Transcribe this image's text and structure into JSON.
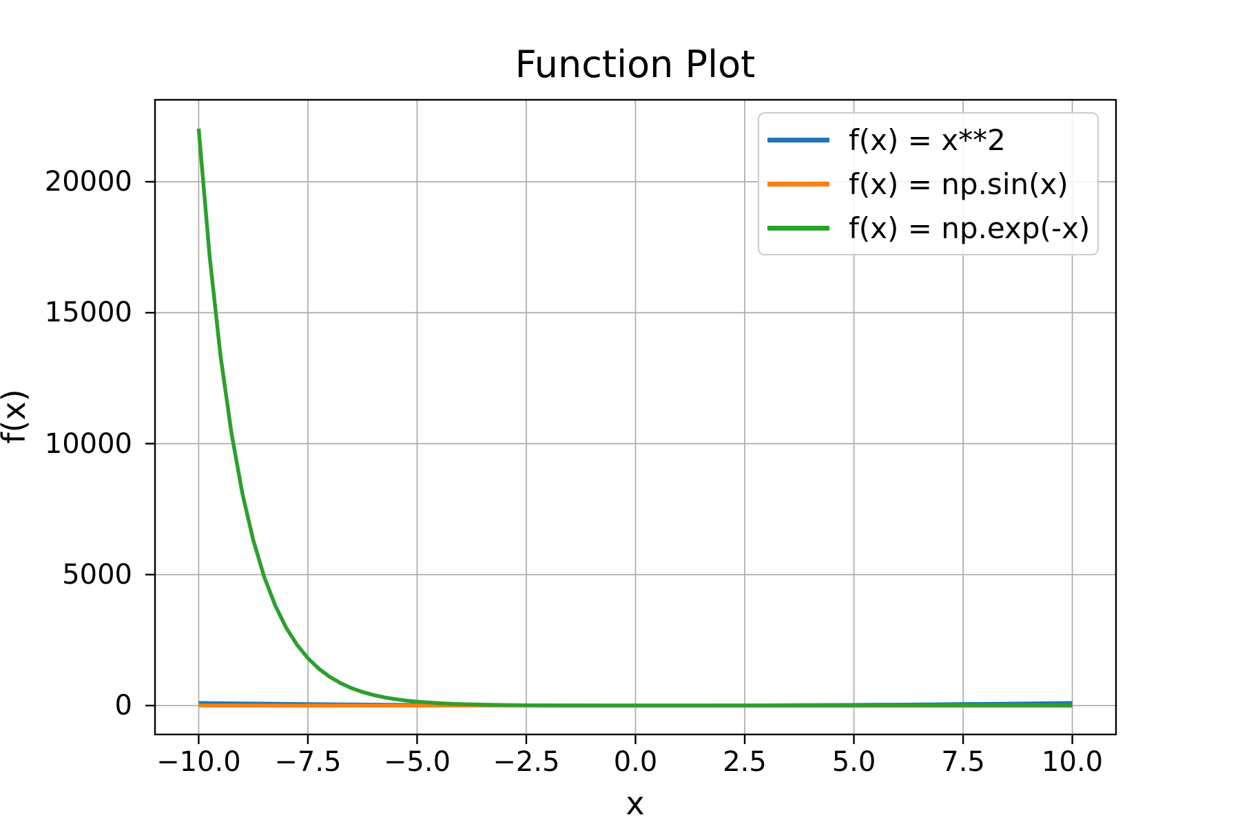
{
  "figure": {
    "background": "#ffffff"
  },
  "chart_data": {
    "type": "line",
    "title": "Function Plot",
    "xlabel": "x",
    "ylabel": "f(x)",
    "xlim": [
      -11,
      11
    ],
    "ylim": [
      -1103,
      23129
    ],
    "grid": true,
    "grid_color": "#b0b0b0",
    "axis_color": "#000000",
    "legend_position": "upper right",
    "legend_border_color": "#cccccc",
    "xticks": {
      "values": [
        -10,
        -7.5,
        -5,
        -2.5,
        0,
        2.5,
        5,
        7.5,
        10
      ],
      "labels": [
        "−10.0",
        "−7.5",
        "−5.0",
        "−2.5",
        "0.0",
        "2.5",
        "5.0",
        "7.5",
        "10.0"
      ]
    },
    "yticks": {
      "values": [
        0,
        5000,
        10000,
        15000,
        20000
      ],
      "labels": [
        "0",
        "5000",
        "10000",
        "15000",
        "20000"
      ]
    },
    "series": [
      {
        "name": "f(x) = x**2",
        "color": "#1f77b4",
        "points": [
          [
            -10,
            100
          ],
          [
            -9,
            81
          ],
          [
            -8,
            64
          ],
          [
            -7,
            49
          ],
          [
            -6,
            36
          ],
          [
            -5,
            25
          ],
          [
            -4,
            16
          ],
          [
            -3,
            9
          ],
          [
            -2,
            4
          ],
          [
            -1,
            1
          ],
          [
            0,
            0
          ],
          [
            1,
            1
          ],
          [
            2,
            4
          ],
          [
            3,
            9
          ],
          [
            4,
            16
          ],
          [
            5,
            25
          ],
          [
            6,
            36
          ],
          [
            7,
            49
          ],
          [
            8,
            64
          ],
          [
            9,
            81
          ],
          [
            10,
            100
          ]
        ]
      },
      {
        "name": "f(x) = np.sin(x)",
        "color": "#ff7f0e",
        "points": [
          [
            -10,
            0.54
          ],
          [
            -9,
            -0.41
          ],
          [
            -8,
            -0.99
          ],
          [
            -7,
            -0.66
          ],
          [
            -6,
            0.28
          ],
          [
            -5,
            0.96
          ],
          [
            -4,
            0.76
          ],
          [
            -3,
            -0.14
          ],
          [
            -2,
            -0.91
          ],
          [
            -1,
            -0.84
          ],
          [
            0,
            0
          ],
          [
            1,
            0.84
          ],
          [
            2,
            0.91
          ],
          [
            3,
            0.14
          ],
          [
            4,
            -0.76
          ],
          [
            5,
            -0.96
          ],
          [
            6,
            -0.28
          ],
          [
            7,
            0.66
          ],
          [
            8,
            0.99
          ],
          [
            9,
            0.41
          ],
          [
            10,
            -0.54
          ]
        ]
      },
      {
        "name": "f(x) = np.exp(-x)",
        "color": "#2ca02c",
        "points": [
          [
            -10,
            22026.47
          ],
          [
            -9.75,
            17154.23
          ],
          [
            -9.5,
            13359.73
          ],
          [
            -9.25,
            10404.57
          ],
          [
            -9,
            8103.08
          ],
          [
            -8.75,
            6310.69
          ],
          [
            -8.5,
            4914.77
          ],
          [
            -8.25,
            3827.63
          ],
          [
            -8,
            2980.96
          ],
          [
            -7.75,
            2321.57
          ],
          [
            -7.5,
            1808.04
          ],
          [
            -7.25,
            1408.1
          ],
          [
            -7,
            1096.63
          ],
          [
            -6.75,
            854.06
          ],
          [
            -6.5,
            665.14
          ],
          [
            -6.25,
            518.01
          ],
          [
            -6,
            403.43
          ],
          [
            -5.75,
            314.19
          ],
          [
            -5.5,
            244.69
          ],
          [
            -5.25,
            190.57
          ],
          [
            -5,
            148.41
          ],
          [
            -4.5,
            90.02
          ],
          [
            -4,
            54.6
          ],
          [
            -3.5,
            33.12
          ],
          [
            -3,
            20.09
          ],
          [
            -2.5,
            12.18
          ],
          [
            -2,
            7.39
          ],
          [
            -1.5,
            4.48
          ],
          [
            -1,
            2.72
          ],
          [
            -0.5,
            1.65
          ],
          [
            0,
            1
          ],
          [
            1,
            0.37
          ],
          [
            2,
            0.14
          ],
          [
            3,
            0.05
          ],
          [
            4,
            0.02
          ],
          [
            5,
            0.01
          ],
          [
            6,
            0
          ],
          [
            7,
            0
          ],
          [
            8,
            0
          ],
          [
            9,
            0
          ],
          [
            10,
            0
          ]
        ]
      }
    ]
  }
}
